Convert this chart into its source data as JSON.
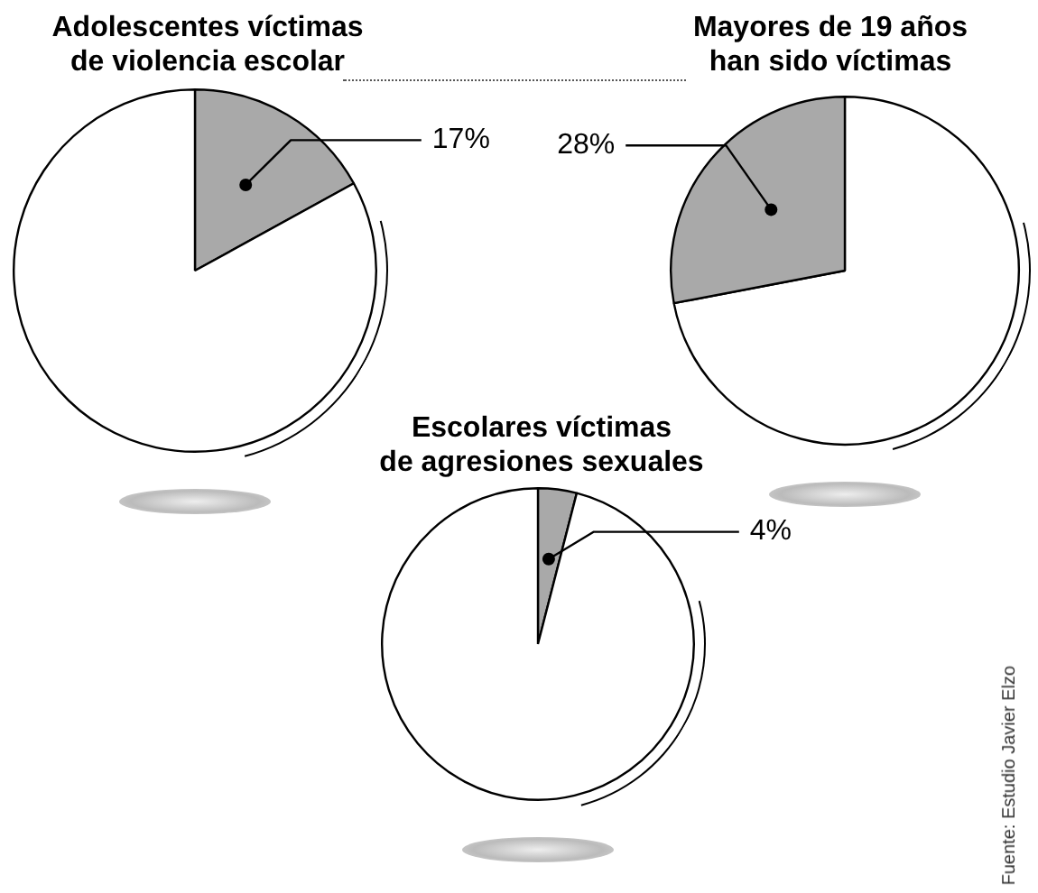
{
  "chart_data": [
    {
      "type": "pie",
      "title": "Adolescentes víctimas\nde violencia escolar",
      "categories": [
        null,
        null
      ],
      "values": [
        17,
        83
      ],
      "colors": [
        "#a9a9a9",
        "#ffffff"
      ],
      "value_labels": [
        "17%",
        null
      ]
    },
    {
      "type": "pie",
      "title": "Mayores de 19 años\nhan sido víctimas",
      "categories": [
        null,
        null
      ],
      "values": [
        72,
        28
      ],
      "colors": [
        "#ffffff",
        "#a9a9a9"
      ],
      "value_labels": [
        null,
        "28%"
      ]
    },
    {
      "type": "pie",
      "title": "Escolares víctimas\nde agresiones sexuales",
      "categories": [
        null,
        null
      ],
      "values": [
        4,
        96
      ],
      "colors": [
        "#a9a9a9",
        "#ffffff"
      ],
      "value_labels": [
        "4%",
        null
      ],
      "annotations": [
        "Fuente: Estudio Javier Elzo"
      ]
    }
  ]
}
